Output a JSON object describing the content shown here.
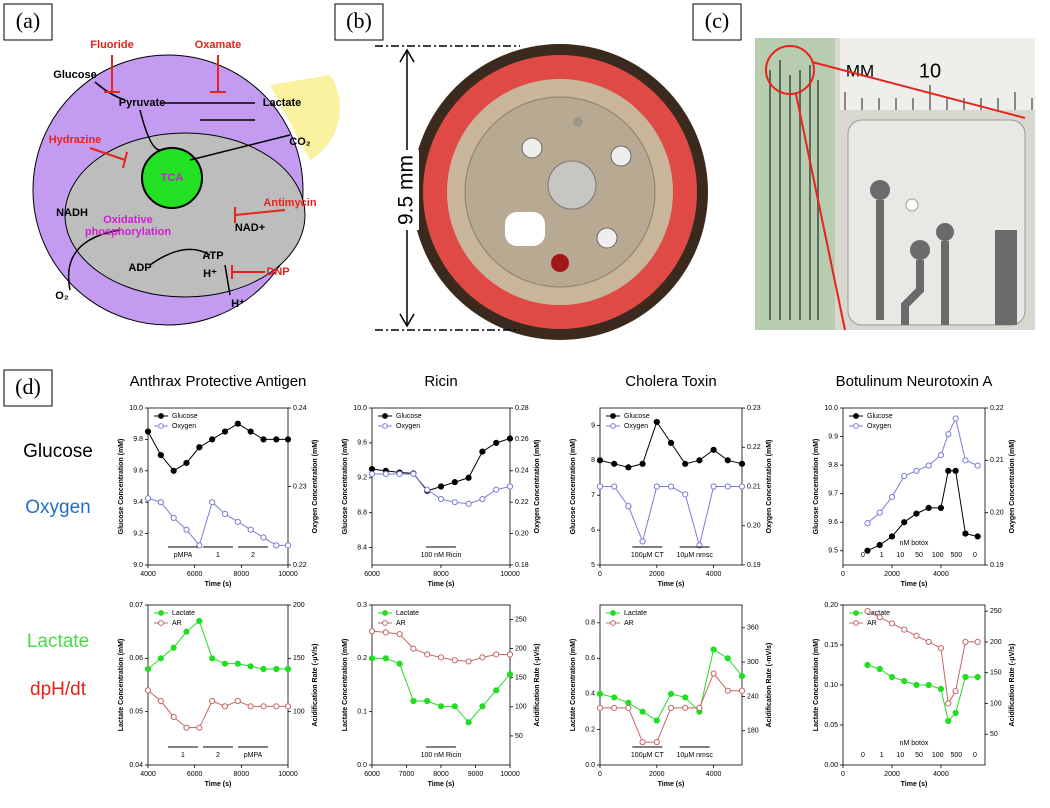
{
  "panel_labels": [
    "(a)",
    "(b)",
    "(c)",
    "(d)"
  ],
  "diagram": {
    "labels": [
      "Fluoride",
      "Oxamate",
      "Glucose",
      "Pyruvate",
      "Lactate",
      "Hydrazine",
      "CO₂",
      "TCA",
      "NADH",
      "Oxidative",
      "phosphorylation",
      "Antimycin",
      "NAD+",
      "ADP",
      "ATP",
      "H⁺",
      "DNP",
      "H⁺",
      "O₂"
    ]
  },
  "photo_b": {
    "dimension": "9.5 mm"
  },
  "photo_c": {
    "ruler_unit": "MM",
    "ruler_number": "10"
  },
  "row_labels": [
    "Glucose",
    "Oxygen",
    "Lactate",
    "dpH/dt"
  ],
  "chart_data": [
    {
      "type": "scatter",
      "title": "Anthrax Protective Antigen",
      "xlabel": "Time (s)",
      "ylabel": "Glucose Concentration (mM)",
      "y2label": "Oxygen Concentration (mM)",
      "x": [
        4000,
        4550,
        5100,
        5650,
        6200,
        6750,
        7300,
        7850,
        8400,
        8950,
        9500,
        10000
      ],
      "xlim": [
        4000,
        10000
      ],
      "xticks": [
        4000,
        6000,
        8000,
        10000
      ],
      "ylim": [
        9,
        10
      ],
      "yticks": [
        {
          "value": 9,
          "label": "9.0"
        },
        9.2,
        9.4,
        9.6,
        9.8,
        {
          "value": 10,
          "label": "10.0"
        }
      ],
      "y2lim": [
        0.22,
        0.24
      ],
      "y2ticks": [
        0.22,
        0.23,
        0.24
      ],
      "series": [
        {
          "name": "Glucose",
          "color": "#000000",
          "values": [
            9.85,
            9.7,
            9.6,
            9.65,
            9.75,
            9.8,
            9.85,
            9.9,
            9.85,
            9.8,
            9.8,
            9.8
          ]
        },
        {
          "name": "Oxygen",
          "color": "#7b7bdc",
          "axis": "y2",
          "values": [
            0.2285,
            0.228,
            0.226,
            0.2245,
            0.2225,
            0.228,
            0.2265,
            0.2255,
            0.2245,
            0.2235,
            0.2225,
            0.2225
          ]
        }
      ],
      "annotations": [
        "pMPA",
        "1",
        "2"
      ]
    },
    {
      "type": "scatter",
      "title": "Ricin",
      "xlabel": "Time (s)",
      "ylabel": "Glucose Concentration (mM)",
      "y2label": "Oxygen Concentration (mM)",
      "x": [
        6000,
        6400,
        6800,
        7200,
        7600,
        8000,
        8400,
        8800,
        9200,
        9600,
        10000
      ],
      "xlim": [
        6000,
        10000
      ],
      "xticks": [
        6000,
        8000,
        10000
      ],
      "ylim": [
        8.2,
        10
      ],
      "yticks": [
        8.4,
        8.8,
        9.2,
        9.6,
        {
          "value": 10,
          "label": "10.0"
        }
      ],
      "y2lim": [
        0.18,
        0.28
      ],
      "y2ticks": [
        0.18,
        {
          "value": 0.2,
          "label": "0.20"
        },
        0.22,
        0.24,
        0.26,
        0.28
      ],
      "series": [
        {
          "name": "Glucose",
          "color": "#000000",
          "values": [
            9.3,
            9.28,
            9.26,
            9.25,
            9.05,
            9.1,
            9.15,
            9.2,
            9.5,
            9.6,
            9.65
          ]
        },
        {
          "name": "Oxygen",
          "color": "#7b7bdc",
          "axis": "y2",
          "values": [
            0.238,
            0.238,
            0.238,
            0.238,
            0.228,
            0.222,
            0.22,
            0.219,
            0.222,
            0.228,
            0.23
          ]
        }
      ],
      "annotations": [
        "100 nM Ricin"
      ]
    },
    {
      "type": "scatter",
      "title": "Cholera Toxin",
      "xlabel": "Time (s)",
      "ylabel": "Glucose Concentration (mM)",
      "y2label": "Oxygen Concentration (mM)",
      "x": [
        0,
        500,
        1000,
        1500,
        2000,
        2500,
        3000,
        3500,
        4000,
        4500,
        5000
      ],
      "xlim": [
        0,
        5000
      ],
      "xticks": [
        0,
        2000,
        4000
      ],
      "ylim": [
        5,
        9.5
      ],
      "yticks": [
        5,
        6,
        7,
        8,
        9
      ],
      "y2lim": [
        0.19,
        0.23
      ],
      "y2ticks": [
        0.19,
        {
          "value": 0.2,
          "label": "0.20"
        },
        0.21,
        0.22,
        0.23
      ],
      "series": [
        {
          "name": "Glucose",
          "color": "#000000",
          "values": [
            8,
            7.9,
            7.8,
            7.9,
            9.1,
            8.5,
            7.9,
            8,
            8.3,
            8,
            7.9
          ]
        },
        {
          "name": "Oxygen",
          "color": "#7b7bdc",
          "axis": "y2",
          "values": [
            0.21,
            0.21,
            0.205,
            0.196,
            0.21,
            0.21,
            0.208,
            0.195,
            0.21,
            0.21,
            0.21
          ]
        }
      ],
      "annotations": [
        "100μM CT",
        "10μM nmsc"
      ]
    },
    {
      "type": "scatter",
      "title": "Botulinum Neurotoxin A",
      "xlabel": "Time (s)",
      "ylabel": "Glucose Concentration (mM)",
      "y2label": "Oxygen Concentration (mM)",
      "x": [
        1000,
        1500,
        2000,
        2500,
        3000,
        3500,
        4000,
        4300,
        4600,
        5000,
        5500
      ],
      "xlim": [
        0,
        5800
      ],
      "xticks": [
        0,
        2000,
        4000
      ],
      "ylim": [
        9.45,
        10
      ],
      "yticks": [
        9.5,
        9.6,
        9.7,
        9.8,
        9.9,
        {
          "value": 10,
          "label": "10.0"
        }
      ],
      "y2lim": [
        0.19,
        0.22
      ],
      "y2ticks": [
        0.19,
        {
          "value": 0.2,
          "label": "0.20"
        },
        0.21,
        0.22
      ],
      "series": [
        {
          "name": "Glucose",
          "color": "#000000",
          "values": [
            9.5,
            9.52,
            9.55,
            9.6,
            9.63,
            9.65,
            9.65,
            9.78,
            9.78,
            9.56,
            9.55
          ]
        },
        {
          "name": "Oxygen",
          "color": "#7b7bdc",
          "axis": "y2",
          "values": [
            0.198,
            0.2,
            0.203,
            0.207,
            0.208,
            0.209,
            0.211,
            0.215,
            0.218,
            0.21,
            0.209
          ]
        }
      ],
      "annotations": [
        "nM botox",
        "0",
        "1",
        "10",
        "50",
        "100",
        "500",
        "0"
      ]
    },
    {
      "type": "scatter",
      "xlabel": "Time (s)",
      "ylabel": "Lactate Concentration (mM)",
      "y2label": "Acidification Rate (-μV/s)",
      "x": [
        4000,
        4550,
        5100,
        5650,
        6200,
        6750,
        7300,
        7850,
        8400,
        8950,
        9500,
        10000
      ],
      "xlim": [
        4000,
        10000
      ],
      "xticks": [
        4000,
        6000,
        8000,
        10000
      ],
      "ylim": [
        0.04,
        0.07
      ],
      "yticks": [
        0.04,
        0.05,
        0.06,
        0.07
      ],
      "y2lim": [
        50,
        200
      ],
      "y2ticks": [
        100,
        150,
        200
      ],
      "series": [
        {
          "name": "Lactate",
          "color": "#22dd22",
          "values": [
            0.058,
            0.06,
            0.062,
            0.065,
            0.067,
            0.06,
            0.059,
            0.059,
            0.0585,
            0.058,
            0.058,
            0.058
          ]
        },
        {
          "name": "AR",
          "color": "#c86464",
          "axis": "y2",
          "values": [
            120,
            110,
            95,
            85,
            85,
            110,
            105,
            110,
            105,
            105,
            105,
            105
          ]
        }
      ],
      "annotations": [
        "1",
        "2",
        "pMPA"
      ]
    },
    {
      "type": "scatter",
      "xlabel": "Time (s)",
      "ylabel": "Lactate Concentration (mM)",
      "y2label": "Acidification Rate (-μV/s)",
      "x": [
        6000,
        6400,
        6800,
        7200,
        7600,
        8000,
        8400,
        8800,
        9200,
        9600,
        10000
      ],
      "xlim": [
        6000,
        10000
      ],
      "xticks": [
        6000,
        7000,
        8000,
        9000,
        10000
      ],
      "ylim": [
        0,
        0.3
      ],
      "yticks": [
        {
          "value": 0,
          "label": "0.0"
        },
        0.1,
        0.2,
        0.3
      ],
      "y2lim": [
        0,
        275
      ],
      "y2ticks": [
        50,
        100,
        150,
        200,
        250
      ],
      "series": [
        {
          "name": "Lactate",
          "color": "#22dd22",
          "values": [
            0.2,
            0.2,
            0.19,
            0.12,
            0.12,
            0.11,
            0.11,
            0.08,
            0.11,
            0.14,
            0.17
          ]
        },
        {
          "name": "AR",
          "color": "#c86464",
          "axis": "y2",
          "values": [
            230,
            228,
            225,
            200,
            190,
            185,
            180,
            178,
            185,
            190,
            190
          ]
        }
      ],
      "annotations": [
        "100 nM Ricin"
      ]
    },
    {
      "type": "scatter",
      "xlabel": "Time (s)",
      "ylabel": "Lactate Concentration (mM)",
      "y2label": "Acidification Rate (-mV/s)",
      "x": [
        0,
        500,
        1000,
        1500,
        2000,
        2500,
        3000,
        3500,
        4000,
        4500,
        5000
      ],
      "xlim": [
        0,
        5000
      ],
      "xticks": [
        0,
        2000,
        4000
      ],
      "ylim": [
        0,
        0.9
      ],
      "yticks": [
        {
          "value": 0,
          "label": "0.0"
        },
        0.2,
        0.4,
        0.6,
        0.8
      ],
      "y2lim": [
        120,
        400
      ],
      "y2ticks": [
        180,
        240,
        300,
        360
      ],
      "series": [
        {
          "name": "Lactate",
          "color": "#22dd22",
          "values": [
            0.4,
            0.38,
            0.35,
            0.3,
            0.25,
            0.4,
            0.38,
            0.3,
            0.65,
            0.6,
            0.5
          ]
        },
        {
          "name": "AR",
          "color": "#c86464",
          "axis": "y2",
          "values": [
            220,
            220,
            220,
            160,
            160,
            220,
            220,
            220,
            280,
            250,
            250
          ]
        }
      ],
      "annotations": [
        "100μM CT",
        "10μM nmsc"
      ]
    },
    {
      "type": "scatter",
      "xlabel": "Time (s)",
      "ylabel": "Lactate Concentration (mM)",
      "y2label": "Acidification Rate (-μV/s)",
      "x": [
        1000,
        1500,
        2000,
        2500,
        3000,
        3500,
        4000,
        4300,
        4600,
        5000,
        5500
      ],
      "xlim": [
        0,
        5800
      ],
      "xticks": [
        0,
        2000,
        4000
      ],
      "ylim": [
        0,
        0.2
      ],
      "yticks": [
        {
          "value": 0,
          "label": "0.00"
        },
        0.05,
        {
          "value": 0.1,
          "label": "0.10"
        },
        0.15,
        {
          "value": 0.2,
          "label": "0.20"
        }
      ],
      "y2lim": [
        0,
        260
      ],
      "y2ticks": [
        50,
        100,
        150,
        200,
        250
      ],
      "series": [
        {
          "name": "Lactate",
          "color": "#22dd22",
          "values": [
            0.125,
            0.12,
            0.11,
            0.105,
            0.1,
            0.1,
            0.095,
            0.055,
            0.065,
            0.11,
            0.11
          ]
        },
        {
          "name": "AR",
          "color": "#c86464",
          "axis": "y2",
          "values": [
            250,
            240,
            230,
            220,
            210,
            200,
            190,
            100,
            120,
            200,
            200
          ]
        }
      ],
      "annotations": [
        "nM botox",
        "0",
        "1",
        "10",
        "50",
        "100",
        "500",
        "0"
      ]
    }
  ]
}
